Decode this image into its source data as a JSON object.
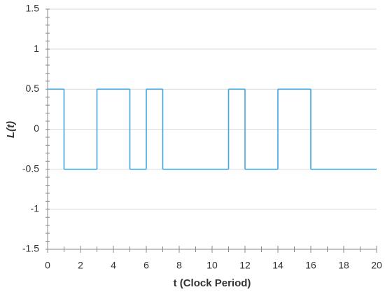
{
  "chart_data": {
    "type": "step",
    "step": "post",
    "x": [
      0,
      1,
      3,
      5,
      6,
      7,
      11,
      12,
      14,
      16,
      20
    ],
    "values": [
      0.5,
      -0.5,
      0.5,
      -0.5,
      0.5,
      -0.5,
      0.5,
      -0.5,
      0.5,
      -0.5,
      -0.5
    ],
    "color": "#41a6dc",
    "xlabel": "t (Clock Period)",
    "ylabel": "L(t)",
    "xlim": [
      0,
      20
    ],
    "xticks": [
      0,
      2,
      4,
      6,
      8,
      10,
      12,
      14,
      16,
      18,
      20
    ],
    "ylim": [
      -1.5,
      1.5
    ],
    "yticks": [
      -1.5,
      -1,
      -0.5,
      0,
      0.5,
      1,
      1.5
    ],
    "x_minor_step": 1,
    "y_minor_step": 0.1,
    "grid": true
  }
}
